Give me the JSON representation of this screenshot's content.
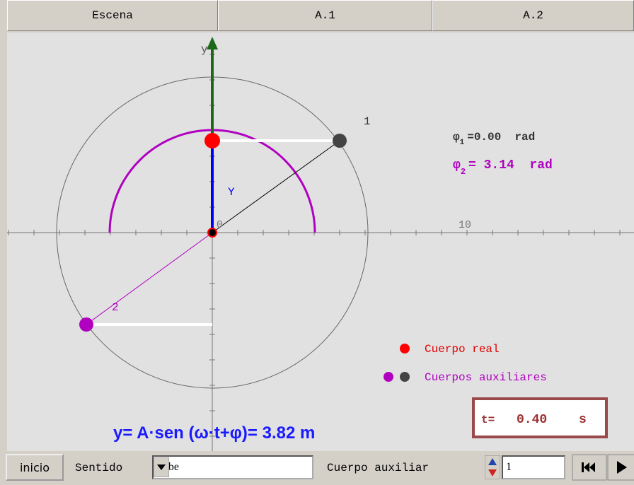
{
  "tabs": [
    "Escena",
    "A.1",
    "A.2"
  ],
  "scene": {
    "axis_label_y": "y",
    "label_Y": "Y",
    "origin_label": "0",
    "axis_tick_label": "10",
    "body_1_label": "1",
    "body_2_label": "2",
    "phi_1": {
      "symbol": "φ",
      "index": "1",
      "text": "=0.00  rad"
    },
    "phi_2": {
      "symbol": "φ",
      "index": "2",
      "text": "= 3.14  rad"
    },
    "legend": [
      "Cuerpo real",
      "Cuerpos auxiliares"
    ],
    "formula": "y= A·sen (ω·t+φ)= 3.82 m",
    "time": {
      "label": "t=",
      "value": "0.40",
      "unit": "s"
    }
  },
  "controls": {
    "reset_button": "inicio",
    "direction_label": "Sentido",
    "direction_value": "Sube",
    "aux_label": "Cuerpo auxiliar",
    "aux_value": "1"
  }
}
